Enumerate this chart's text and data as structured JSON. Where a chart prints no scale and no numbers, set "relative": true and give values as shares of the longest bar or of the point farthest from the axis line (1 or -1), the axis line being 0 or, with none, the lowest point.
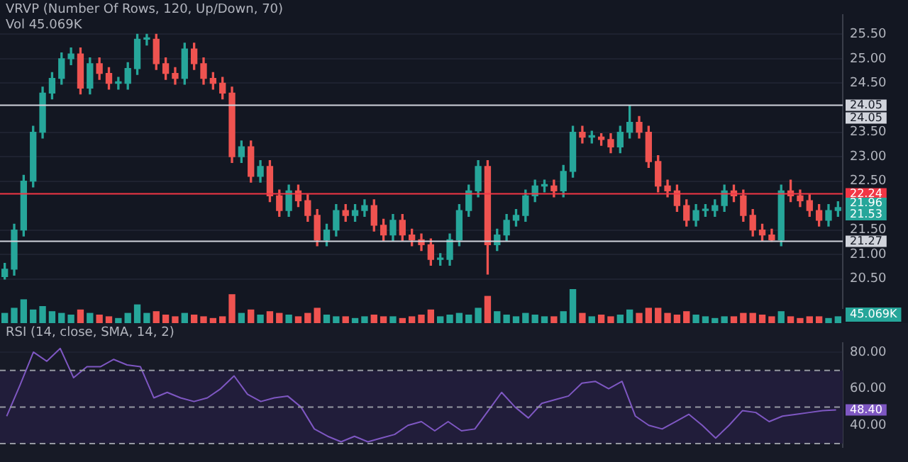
{
  "chart_data": [
    {
      "type": "candlestick",
      "title": "VRVP (Number Of Rows, 120, Up/Down, 70)",
      "subtitle": "Vol 45.069K",
      "categories": [
        null,
        null,
        null,
        null,
        null,
        null,
        null,
        null,
        null,
        null,
        null,
        null,
        null,
        null,
        null,
        null,
        null,
        null,
        null,
        null,
        null,
        null,
        null,
        null,
        null,
        null,
        null,
        null,
        null,
        null,
        null,
        null,
        null,
        null,
        null,
        null,
        null,
        null,
        null,
        null,
        null,
        null,
        null,
        null,
        null,
        null,
        null,
        null,
        null,
        null,
        null,
        null,
        null,
        null,
        null,
        null,
        null,
        null,
        null,
        null,
        null,
        null,
        null,
        null,
        null,
        null,
        null,
        null,
        null,
        null,
        null,
        null,
        null,
        null,
        null,
        null,
        null,
        null,
        null,
        null,
        null,
        null,
        null,
        null,
        null,
        null,
        null,
        null,
        null
      ],
      "ohlc": [
        [
          20.55,
          20.82,
          20.5,
          20.7
        ],
        [
          20.7,
          21.62,
          20.58,
          21.5
        ],
        [
          21.5,
          22.62,
          21.38,
          22.5
        ],
        [
          22.5,
          23.62,
          22.38,
          23.5
        ],
        [
          23.5,
          24.42,
          23.38,
          24.3
        ],
        [
          24.3,
          24.72,
          24.18,
          24.6
        ],
        [
          24.6,
          25.12,
          24.48,
          25.0
        ],
        [
          25.0,
          25.22,
          24.88,
          25.1
        ],
        [
          25.1,
          25.22,
          24.28,
          24.4
        ],
        [
          24.4,
          25.02,
          24.28,
          24.9
        ],
        [
          24.9,
          25.02,
          24.58,
          24.7
        ],
        [
          24.7,
          24.82,
          24.38,
          24.5
        ],
        [
          24.5,
          24.62,
          24.38,
          24.5
        ],
        [
          24.5,
          24.92,
          24.38,
          24.8
        ],
        [
          24.8,
          25.5,
          24.68,
          25.4
        ],
        [
          25.4,
          25.5,
          25.28,
          25.4
        ],
        [
          25.4,
          25.5,
          24.78,
          24.9
        ],
        [
          24.9,
          25.02,
          24.58,
          24.7
        ],
        [
          24.7,
          24.82,
          24.48,
          24.6
        ],
        [
          24.6,
          25.32,
          24.48,
          25.2
        ],
        [
          25.2,
          25.32,
          24.78,
          24.9
        ],
        [
          24.9,
          25.02,
          24.48,
          24.6
        ],
        [
          24.6,
          24.72,
          24.38,
          24.5
        ],
        [
          24.5,
          24.62,
          24.18,
          24.3
        ],
        [
          24.3,
          24.42,
          22.88,
          23.0
        ],
        [
          23.0,
          23.32,
          22.88,
          23.2
        ],
        [
          23.2,
          23.32,
          22.48,
          22.6
        ],
        [
          22.6,
          22.92,
          22.48,
          22.8
        ],
        [
          22.8,
          22.92,
          22.08,
          22.2
        ],
        [
          22.2,
          22.32,
          21.78,
          21.9
        ],
        [
          21.9,
          22.42,
          21.78,
          22.3
        ],
        [
          22.3,
          22.42,
          21.98,
          22.1
        ],
        [
          22.1,
          22.22,
          21.68,
          21.8
        ],
        [
          21.8,
          21.92,
          21.18,
          21.3
        ],
        [
          21.3,
          21.62,
          21.18,
          21.5
        ],
        [
          21.5,
          22.02,
          21.38,
          21.9
        ],
        [
          21.9,
          22.02,
          21.68,
          21.8
        ],
        [
          21.8,
          22.02,
          21.68,
          21.9
        ],
        [
          21.9,
          22.12,
          21.78,
          22.0
        ],
        [
          22.0,
          22.12,
          21.48,
          21.6
        ],
        [
          21.6,
          21.72,
          21.28,
          21.4
        ],
        [
          21.4,
          21.82,
          21.28,
          21.7
        ],
        [
          21.7,
          21.82,
          21.28,
          21.4
        ],
        [
          21.4,
          21.52,
          21.18,
          21.3
        ],
        [
          21.3,
          21.42,
          21.08,
          21.2
        ],
        [
          21.2,
          21.32,
          20.78,
          20.9
        ],
        [
          20.9,
          21.02,
          20.78,
          20.9
        ],
        [
          20.9,
          21.42,
          20.78,
          21.3
        ],
        [
          21.3,
          22.02,
          21.18,
          21.9
        ],
        [
          21.9,
          22.42,
          21.78,
          22.3
        ],
        [
          22.3,
          22.92,
          22.18,
          22.8
        ],
        [
          22.8,
          22.92,
          20.6,
          21.2
        ],
        [
          21.2,
          21.52,
          21.08,
          21.4
        ],
        [
          21.4,
          21.82,
          21.28,
          21.7
        ],
        [
          21.7,
          21.92,
          21.58,
          21.8
        ],
        [
          21.8,
          22.32,
          21.68,
          22.2
        ],
        [
          22.2,
          22.52,
          22.08,
          22.4
        ],
        [
          22.4,
          22.52,
          22.28,
          22.4
        ],
        [
          22.4,
          22.52,
          22.18,
          22.3
        ],
        [
          22.3,
          22.82,
          22.18,
          22.7
        ],
        [
          22.7,
          23.62,
          22.58,
          23.5
        ],
        [
          23.5,
          23.62,
          23.28,
          23.4
        ],
        [
          23.4,
          23.52,
          23.28,
          23.4
        ],
        [
          23.4,
          23.47,
          23.23,
          23.35
        ],
        [
          23.35,
          23.47,
          23.08,
          23.2
        ],
        [
          23.2,
          23.62,
          23.08,
          23.5
        ],
        [
          23.5,
          24.05,
          23.38,
          23.7
        ],
        [
          23.7,
          23.82,
          23.38,
          23.5
        ],
        [
          23.5,
          23.62,
          22.78,
          22.9
        ],
        [
          22.9,
          23.02,
          22.28,
          22.4
        ],
        [
          22.4,
          22.52,
          22.18,
          22.3
        ],
        [
          22.3,
          22.42,
          21.88,
          22.0
        ],
        [
          22.0,
          22.12,
          21.58,
          21.7
        ],
        [
          21.7,
          22.02,
          21.58,
          21.9
        ],
        [
          21.9,
          22.02,
          21.78,
          21.9
        ],
        [
          21.9,
          22.12,
          21.78,
          22.0
        ],
        [
          22.0,
          22.42,
          21.88,
          22.3
        ],
        [
          22.3,
          22.42,
          22.08,
          22.2
        ],
        [
          22.2,
          22.32,
          21.68,
          21.8
        ],
        [
          21.8,
          21.92,
          21.38,
          21.5
        ],
        [
          21.5,
          21.62,
          21.28,
          21.4
        ],
        [
          21.4,
          21.52,
          21.27,
          21.3
        ],
        [
          21.3,
          22.42,
          21.18,
          22.3
        ],
        [
          22.3,
          22.52,
          22.08,
          22.2
        ],
        [
          22.2,
          22.32,
          21.98,
          22.1
        ],
        [
          22.1,
          22.22,
          21.78,
          21.9
        ],
        [
          21.9,
          22.02,
          21.58,
          21.7
        ],
        [
          21.7,
          22.02,
          21.58,
          21.9
        ],
        [
          21.9,
          22.08,
          21.78,
          21.96
        ]
      ],
      "colors": [
        "#26a69a",
        "#26a69a",
        "#26a69a",
        "#26a69a",
        "#26a69a",
        "#26a69a",
        "#26a69a",
        "#26a69a",
        "#ef5350",
        "#26a69a",
        "#ef5350",
        "#ef5350",
        "#26a69a",
        "#26a69a",
        "#26a69a",
        "#26a69a",
        "#ef5350",
        "#ef5350",
        "#ef5350",
        "#26a69a",
        "#ef5350",
        "#ef5350",
        "#ef5350",
        "#ef5350",
        "#ef5350",
        "#26a69a",
        "#ef5350",
        "#26a69a",
        "#ef5350",
        "#ef5350",
        "#26a69a",
        "#ef5350",
        "#ef5350",
        "#ef5350",
        "#26a69a",
        "#26a69a",
        "#ef5350",
        "#26a69a",
        "#26a69a",
        "#ef5350",
        "#ef5350",
        "#26a69a",
        "#ef5350",
        "#ef5350",
        "#ef5350",
        "#ef5350",
        "#26a69a",
        "#26a69a",
        "#26a69a",
        "#26a69a",
        "#26a69a",
        "#ef5350",
        "#26a69a",
        "#26a69a",
        "#26a69a",
        "#26a69a",
        "#26a69a",
        "#26a69a",
        "#ef5350",
        "#26a69a",
        "#26a69a",
        "#ef5350",
        "#26a69a",
        "#ef5350",
        "#ef5350",
        "#26a69a",
        "#26a69a",
        "#ef5350",
        "#ef5350",
        "#ef5350",
        "#ef5350",
        "#ef5350",
        "#ef5350",
        "#26a69a",
        "#26a69a",
        "#26a69a",
        "#26a69a",
        "#ef5350",
        "#ef5350",
        "#ef5350",
        "#ef5350",
        "#ef5350",
        "#26a69a",
        "#ef5350",
        "#ef5350",
        "#ef5350",
        "#ef5350",
        "#26a69a",
        "#26a69a"
      ],
      "ylim": [
        19.9,
        25.9
      ],
      "yticks": [
        {
          "value": 20.5,
          "label": "20.50"
        },
        {
          "value": 21,
          "label": "21.00"
        },
        {
          "value": 21.5,
          "label": "21.50"
        },
        {
          "value": 22.5,
          "label": "22.50"
        },
        {
          "value": 23,
          "label": "23.00"
        },
        {
          "value": 23.5,
          "label": "23.50"
        },
        {
          "value": 24.5,
          "label": "24.50"
        },
        {
          "value": 25,
          "label": "25.00"
        },
        {
          "value": 25.5,
          "label": "25.50"
        }
      ],
      "ref_lines": [
        {
          "axis": "y",
          "value": 24.05,
          "label": "24.05",
          "color": "#d1d4dc"
        },
        {
          "axis": "y",
          "value": 22.24,
          "label": "22.24",
          "color": "#f23645"
        },
        {
          "axis": "y",
          "value": 21.27,
          "label": "21.27",
          "color": "#d1d4dc"
        }
      ],
      "annotations": [
        "24.05",
        "21.96",
        "21.53"
      ],
      "grid": true,
      "tick_labels": "y",
      "legend": false
    },
    {
      "type": "bar",
      "relative": true,
      "categories": [
        null,
        null,
        null,
        null,
        null,
        null,
        null,
        null,
        null,
        null,
        null,
        null,
        null,
        null,
        null,
        null,
        null,
        null,
        null,
        null,
        null,
        null,
        null,
        null,
        null,
        null,
        null,
        null,
        null,
        null,
        null,
        null,
        null,
        null,
        null,
        null,
        null,
        null,
        null,
        null,
        null,
        null,
        null,
        null,
        null,
        null,
        null,
        null,
        null,
        null,
        null,
        null,
        null,
        null,
        null,
        null,
        null,
        null,
        null,
        null,
        null,
        null,
        null,
        null,
        null,
        null,
        null,
        null,
        null,
        null,
        null,
        null,
        null,
        null,
        null,
        null,
        null,
        null,
        null,
        null,
        null,
        null,
        null,
        null,
        null,
        null,
        null,
        null,
        null
      ],
      "values": [
        0.3,
        0.45,
        0.7,
        0.4,
        0.5,
        0.35,
        0.3,
        0.25,
        0.4,
        0.3,
        0.25,
        0.2,
        0.15,
        0.3,
        0.55,
        0.3,
        0.35,
        0.25,
        0.2,
        0.3,
        0.25,
        0.2,
        0.15,
        0.2,
        0.85,
        0.3,
        0.4,
        0.25,
        0.35,
        0.3,
        0.25,
        0.2,
        0.3,
        0.45,
        0.25,
        0.2,
        0.2,
        0.15,
        0.2,
        0.25,
        0.2,
        0.2,
        0.15,
        0.2,
        0.25,
        0.4,
        0.2,
        0.25,
        0.3,
        0.25,
        0.45,
        0.8,
        0.35,
        0.25,
        0.2,
        0.3,
        0.25,
        0.2,
        0.2,
        0.35,
        1,
        0.3,
        0.2,
        0.25,
        0.2,
        0.25,
        0.4,
        0.3,
        0.45,
        0.45,
        0.3,
        0.25,
        0.35,
        0.25,
        0.2,
        0.15,
        0.2,
        0.2,
        0.3,
        0.3,
        0.25,
        0.2,
        0.35,
        0.2,
        0.15,
        0.2,
        0.2,
        0.15,
        0.2
      ],
      "colors": [
        "#26a69a",
        "#26a69a",
        "#26a69a",
        "#26a69a",
        "#26a69a",
        "#26a69a",
        "#26a69a",
        "#26a69a",
        "#ef5350",
        "#26a69a",
        "#ef5350",
        "#ef5350",
        "#26a69a",
        "#26a69a",
        "#26a69a",
        "#26a69a",
        "#ef5350",
        "#ef5350",
        "#ef5350",
        "#26a69a",
        "#ef5350",
        "#ef5350",
        "#ef5350",
        "#ef5350",
        "#ef5350",
        "#26a69a",
        "#ef5350",
        "#26a69a",
        "#ef5350",
        "#ef5350",
        "#26a69a",
        "#ef5350",
        "#ef5350",
        "#ef5350",
        "#26a69a",
        "#26a69a",
        "#ef5350",
        "#26a69a",
        "#26a69a",
        "#ef5350",
        "#ef5350",
        "#26a69a",
        "#ef5350",
        "#ef5350",
        "#ef5350",
        "#ef5350",
        "#26a69a",
        "#26a69a",
        "#26a69a",
        "#26a69a",
        "#26a69a",
        "#ef5350",
        "#26a69a",
        "#26a69a",
        "#26a69a",
        "#26a69a",
        "#26a69a",
        "#26a69a",
        "#ef5350",
        "#26a69a",
        "#26a69a",
        "#ef5350",
        "#26a69a",
        "#ef5350",
        "#ef5350",
        "#26a69a",
        "#26a69a",
        "#ef5350",
        "#ef5350",
        "#ef5350",
        "#ef5350",
        "#ef5350",
        "#ef5350",
        "#26a69a",
        "#26a69a",
        "#26a69a",
        "#26a69a",
        "#ef5350",
        "#ef5350",
        "#ef5350",
        "#ef5350",
        "#ef5350",
        "#26a69a",
        "#ef5350",
        "#ef5350",
        "#ef5350",
        "#ef5350",
        "#26a69a",
        "#26a69a"
      ],
      "annotations": [
        "45.069K"
      ],
      "tick_labels": false,
      "legend": false
    },
    {
      "type": "line",
      "title": "RSI (14, close, SMA, 14, 2)",
      "categories": [
        null,
        null,
        null,
        null,
        null,
        null,
        null,
        null,
        null,
        null,
        null,
        null,
        null,
        null,
        null,
        null,
        null,
        null,
        null,
        null,
        null,
        null,
        null,
        null,
        null,
        null,
        null,
        null,
        null,
        null,
        null,
        null,
        null,
        null,
        null,
        null,
        null,
        null,
        null,
        null,
        null,
        null,
        null,
        null,
        null,
        null,
        null,
        null,
        null,
        null,
        null,
        null,
        null,
        null,
        null,
        null,
        null,
        null,
        null,
        null,
        null,
        null,
        null
      ],
      "series": [
        {
          "color": "#7e57c2",
          "values": [
            45,
            62,
            80,
            75,
            82,
            66,
            72,
            72,
            76,
            73,
            72,
            55,
            58,
            55,
            53,
            55,
            60,
            67,
            57,
            53,
            55,
            56,
            50,
            38,
            34,
            31,
            34,
            31,
            33,
            35,
            40,
            42,
            37,
            42,
            37,
            38,
            48,
            58,
            50,
            44,
            52,
            54,
            56,
            63,
            64,
            60,
            64,
            45,
            40,
            38,
            42,
            46,
            40,
            33,
            40,
            48,
            47,
            42,
            45,
            46,
            47,
            48,
            48.4
          ]
        }
      ],
      "ylim": [
        28,
        85
      ],
      "yticks": [
        {
          "value": 40,
          "label": "40.00"
        },
        {
          "value": 60,
          "label": "60.00"
        },
        {
          "value": 80,
          "label": "80.00"
        }
      ],
      "ref_lines": [
        {
          "axis": "y",
          "value": 70,
          "color": "#9598a1",
          "line_style": "dashed"
        },
        {
          "axis": "y",
          "value": 50,
          "color": "#9598a1",
          "line_style": "dashed"
        },
        {
          "axis": "y",
          "value": 30,
          "color": "#9598a1",
          "line_style": "dashed"
        }
      ],
      "bands": [
        {
          "axis": "y",
          "from": 30,
          "to": 70,
          "color": "#211d3a"
        }
      ],
      "annotations": [
        "48.40"
      ],
      "marker": "none",
      "line_style": "solid",
      "grid": true,
      "tick_labels": "y",
      "legend": false
    }
  ]
}
